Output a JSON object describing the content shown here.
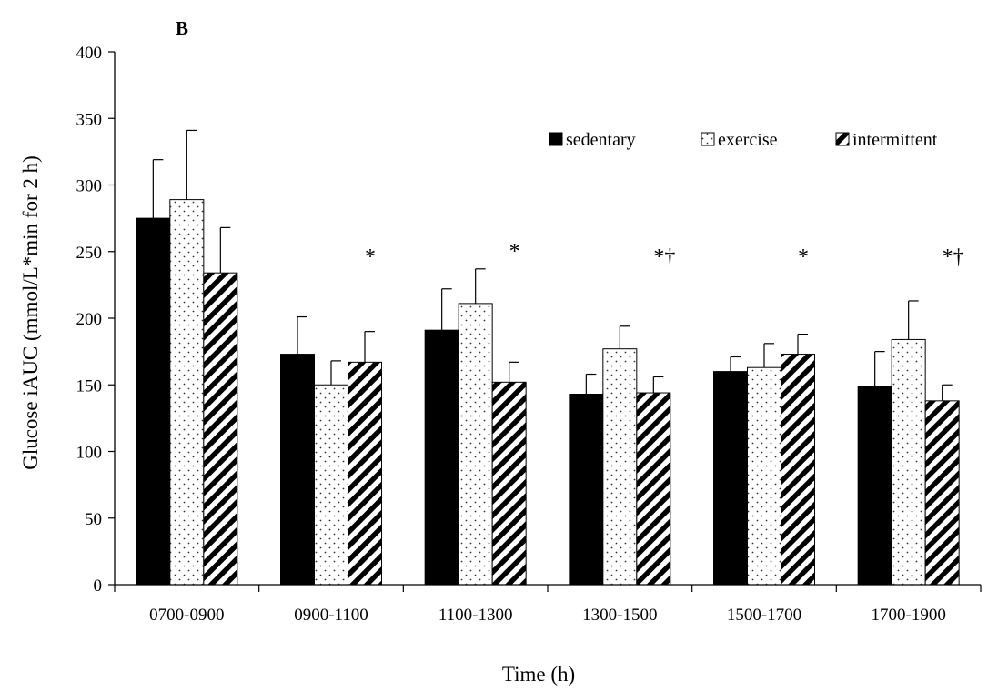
{
  "chart_data": {
    "type": "bar",
    "panel_label": "B",
    "title": "",
    "xlabel": "Time (h)",
    "ylabel": "Glucose iAUC (mmol/L*min for 2 h)",
    "ylim": [
      0,
      400
    ],
    "yticks": [
      0,
      50,
      100,
      150,
      200,
      250,
      300,
      350,
      400
    ],
    "grid": false,
    "legend_position": "top-right",
    "categories": [
      "0700-0900",
      "0900-1100",
      "1100-1300",
      "1300-1500",
      "1500-1700",
      "1700-1900"
    ],
    "series": [
      {
        "name": "sedentary",
        "pattern": "solid",
        "color": "#000000",
        "values": [
          275,
          173,
          191,
          143,
          160,
          149
        ],
        "errors": [
          44,
          28,
          31,
          15,
          11,
          26
        ]
      },
      {
        "name": "exercise",
        "pattern": "dotted",
        "color": "#ffffff",
        "values": [
          289,
          150,
          211,
          177,
          163,
          184
        ],
        "errors": [
          52,
          18,
          26,
          17,
          18,
          29
        ]
      },
      {
        "name": "intermittent",
        "pattern": "hatched",
        "color": "#000000",
        "values": [
          234,
          167,
          152,
          144,
          173,
          138
        ],
        "errors": [
          34,
          23,
          15,
          12,
          15,
          12
        ]
      }
    ],
    "annotations": [
      {
        "category": "0900-1100",
        "text": "*"
      },
      {
        "category": "1100-1300",
        "text": "*"
      },
      {
        "category": "1300-1500",
        "text": "*†"
      },
      {
        "category": "1500-1700",
        "text": "*"
      },
      {
        "category": "1700-1900",
        "text": "*†"
      }
    ]
  }
}
